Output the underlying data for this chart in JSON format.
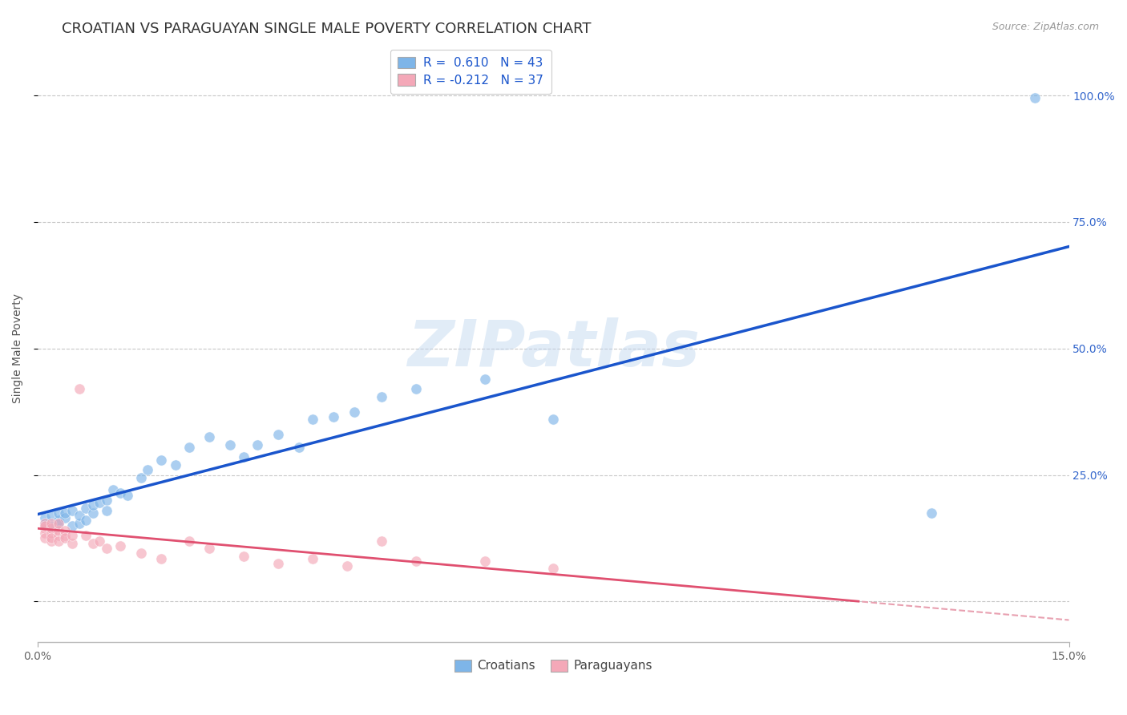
{
  "title": "CROATIAN VS PARAGUAYAN SINGLE MALE POVERTY CORRELATION CHART",
  "source": "Source: ZipAtlas.com",
  "ylabel": "Single Male Poverty",
  "watermark": "ZIPatlas",
  "croatian_R": "0.610",
  "croatian_N": "43",
  "paraguayan_R": "-0.212",
  "paraguayan_N": "37",
  "xlim": [
    0.0,
    0.15
  ],
  "ylim": [
    -0.08,
    1.08
  ],
  "ytick_vals": [
    0.0,
    0.25,
    0.5,
    0.75,
    1.0
  ],
  "ytick_labels": [
    "",
    "25.0%",
    "50.0%",
    "75.0%",
    "100.0%"
  ],
  "croatian_color": "#7EB5E8",
  "paraguayan_color": "#F4A8B8",
  "trendline_croatian_color": "#1A55CC",
  "trendline_paraguayan_solid_color": "#E05070",
  "trendline_paraguayan_dash_color": "#E8A0B0",
  "background_color": "#FFFFFF",
  "grid_color": "#C8C8C8",
  "croatians_x": [
    0.001,
    0.001,
    0.002,
    0.002,
    0.003,
    0.003,
    0.003,
    0.004,
    0.004,
    0.005,
    0.005,
    0.006,
    0.006,
    0.007,
    0.007,
    0.008,
    0.008,
    0.009,
    0.01,
    0.01,
    0.011,
    0.012,
    0.013,
    0.015,
    0.016,
    0.018,
    0.02,
    0.022,
    0.025,
    0.028,
    0.03,
    0.032,
    0.035,
    0.038,
    0.04,
    0.043,
    0.046,
    0.05,
    0.055,
    0.065,
    0.075,
    0.13,
    0.145
  ],
  "croatians_y": [
    0.155,
    0.165,
    0.15,
    0.17,
    0.16,
    0.155,
    0.175,
    0.165,
    0.175,
    0.15,
    0.18,
    0.155,
    0.17,
    0.16,
    0.185,
    0.175,
    0.19,
    0.195,
    0.2,
    0.18,
    0.22,
    0.215,
    0.21,
    0.245,
    0.26,
    0.28,
    0.27,
    0.305,
    0.325,
    0.31,
    0.285,
    0.31,
    0.33,
    0.305,
    0.36,
    0.365,
    0.375,
    0.405,
    0.42,
    0.44,
    0.36,
    0.175,
    0.995
  ],
  "paraguayans_x": [
    0.001,
    0.001,
    0.001,
    0.001,
    0.001,
    0.002,
    0.002,
    0.002,
    0.002,
    0.002,
    0.003,
    0.003,
    0.003,
    0.003,
    0.004,
    0.004,
    0.004,
    0.005,
    0.005,
    0.006,
    0.007,
    0.008,
    0.009,
    0.01,
    0.012,
    0.015,
    0.018,
    0.022,
    0.025,
    0.03,
    0.035,
    0.04,
    0.045,
    0.05,
    0.055,
    0.065,
    0.075
  ],
  "paraguayans_y": [
    0.145,
    0.155,
    0.135,
    0.125,
    0.15,
    0.12,
    0.135,
    0.145,
    0.125,
    0.155,
    0.13,
    0.14,
    0.12,
    0.155,
    0.13,
    0.14,
    0.125,
    0.115,
    0.13,
    0.42,
    0.13,
    0.115,
    0.12,
    0.105,
    0.11,
    0.095,
    0.085,
    0.12,
    0.105,
    0.09,
    0.075,
    0.085,
    0.07,
    0.12,
    0.08,
    0.08,
    0.065
  ],
  "marker_size": 90,
  "marker_alpha": 0.65,
  "title_fontsize": 13,
  "axis_label_fontsize": 10,
  "tick_fontsize": 10,
  "legend_fontsize": 11
}
